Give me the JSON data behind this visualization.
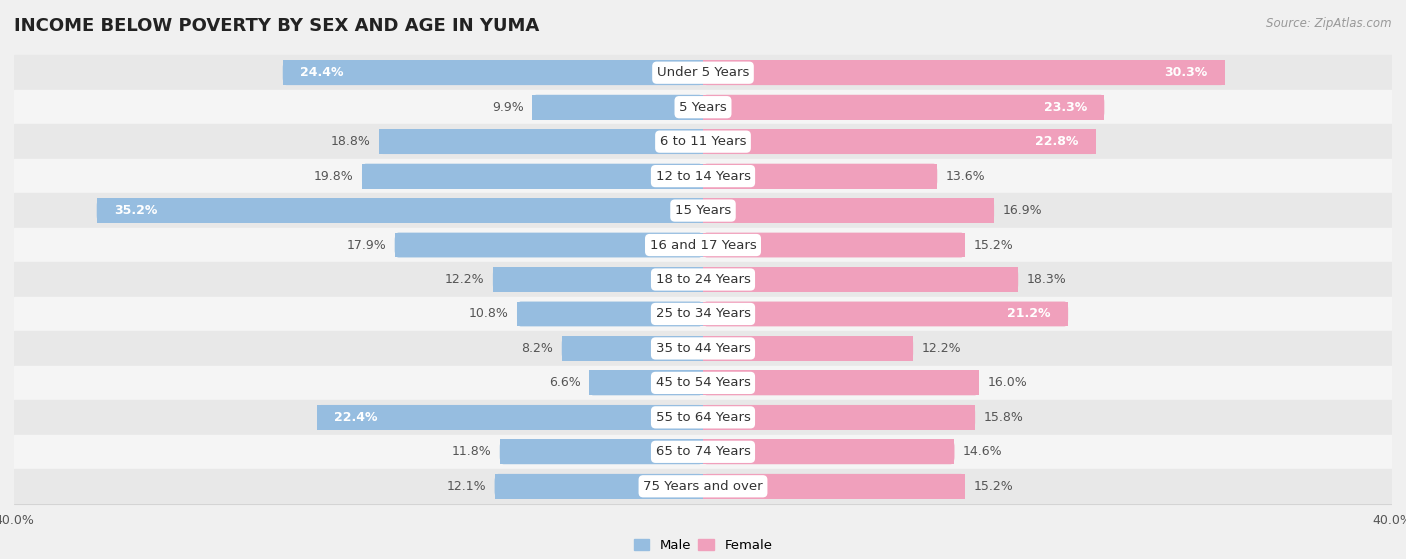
{
  "title": "INCOME BELOW POVERTY BY SEX AND AGE IN YUMA",
  "source": "Source: ZipAtlas.com",
  "categories": [
    "Under 5 Years",
    "5 Years",
    "6 to 11 Years",
    "12 to 14 Years",
    "15 Years",
    "16 and 17 Years",
    "18 to 24 Years",
    "25 to 34 Years",
    "35 to 44 Years",
    "45 to 54 Years",
    "55 to 64 Years",
    "65 to 74 Years",
    "75 Years and over"
  ],
  "male": [
    24.4,
    9.9,
    18.8,
    19.8,
    35.2,
    17.9,
    12.2,
    10.8,
    8.2,
    6.6,
    22.4,
    11.8,
    12.1
  ],
  "female": [
    30.3,
    23.3,
    22.8,
    13.6,
    16.9,
    15.2,
    18.3,
    21.2,
    12.2,
    16.0,
    15.8,
    14.6,
    15.2
  ],
  "male_color": "#96bde0",
  "female_color": "#f0a0bc",
  "background_color": "#f0f0f0",
  "row_bg_odd": "#e8e8e8",
  "row_bg_even": "#f5f5f5",
  "xlim": 40.0,
  "bar_height": 0.72,
  "title_fontsize": 13,
  "label_fontsize": 9.5,
  "value_fontsize": 9,
  "axis_fontsize": 9,
  "source_fontsize": 8.5
}
